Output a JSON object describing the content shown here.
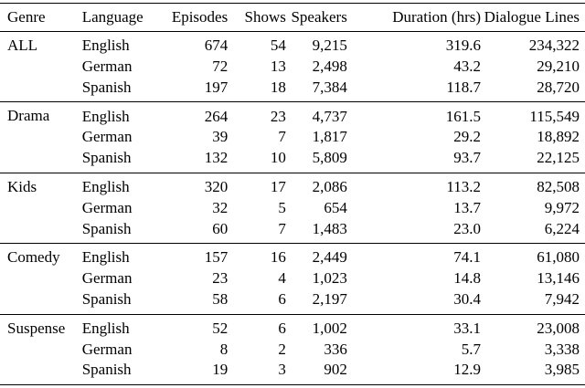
{
  "table": {
    "headers": {
      "genre": "Genre",
      "language": "Language",
      "episodes": "Episodes",
      "shows": "Shows",
      "speakers": "Speakers",
      "duration": "Duration (hrs)",
      "dialogue_lines": "Dialogue Lines"
    },
    "groups": [
      {
        "genre": "ALL",
        "rows": [
          {
            "language": "English",
            "episodes": "674",
            "shows": "54",
            "speakers": "9,215",
            "duration": "319.6",
            "dialogue_lines": "234,322"
          },
          {
            "language": "German",
            "episodes": "72",
            "shows": "13",
            "speakers": "2,498",
            "duration": "43.2",
            "dialogue_lines": "29,210"
          },
          {
            "language": "Spanish",
            "episodes": "197",
            "shows": "18",
            "speakers": "7,384",
            "duration": "118.7",
            "dialogue_lines": "28,720"
          }
        ]
      },
      {
        "genre": "Drama",
        "rows": [
          {
            "language": "English",
            "episodes": "264",
            "shows": "23",
            "speakers": "4,737",
            "duration": "161.5",
            "dialogue_lines": "115,549"
          },
          {
            "language": "German",
            "episodes": "39",
            "shows": "7",
            "speakers": "1,817",
            "duration": "29.2",
            "dialogue_lines": "18,892"
          },
          {
            "language": "Spanish",
            "episodes": "132",
            "shows": "10",
            "speakers": "5,809",
            "duration": "93.7",
            "dialogue_lines": "22,125"
          }
        ]
      },
      {
        "genre": "Kids",
        "rows": [
          {
            "language": "English",
            "episodes": "320",
            "shows": "17",
            "speakers": "2,086",
            "duration": "113.2",
            "dialogue_lines": "82,508"
          },
          {
            "language": "German",
            "episodes": "32",
            "shows": "5",
            "speakers": "654",
            "duration": "13.7",
            "dialogue_lines": "9,972"
          },
          {
            "language": "Spanish",
            "episodes": "60",
            "shows": "7",
            "speakers": "1,483",
            "duration": "23.0",
            "dialogue_lines": "6,224"
          }
        ]
      },
      {
        "genre": "Comedy",
        "rows": [
          {
            "language": "English",
            "episodes": "157",
            "shows": "16",
            "speakers": "2,449",
            "duration": "74.1",
            "dialogue_lines": "61,080"
          },
          {
            "language": "German",
            "episodes": "23",
            "shows": "4",
            "speakers": "1,023",
            "duration": "14.8",
            "dialogue_lines": "13,146"
          },
          {
            "language": "Spanish",
            "episodes": "58",
            "shows": "6",
            "speakers": "2,197",
            "duration": "30.4",
            "dialogue_lines": "7,942"
          }
        ]
      },
      {
        "genre": "Suspense",
        "rows": [
          {
            "language": "English",
            "episodes": "52",
            "shows": "6",
            "speakers": "1,002",
            "duration": "33.1",
            "dialogue_lines": "23,008"
          },
          {
            "language": "German",
            "episodes": "8",
            "shows": "2",
            "speakers": "336",
            "duration": "5.7",
            "dialogue_lines": "3,338"
          },
          {
            "language": "Spanish",
            "episodes": "19",
            "shows": "3",
            "speakers": "902",
            "duration": "12.9",
            "dialogue_lines": "3,985"
          }
        ]
      }
    ]
  }
}
